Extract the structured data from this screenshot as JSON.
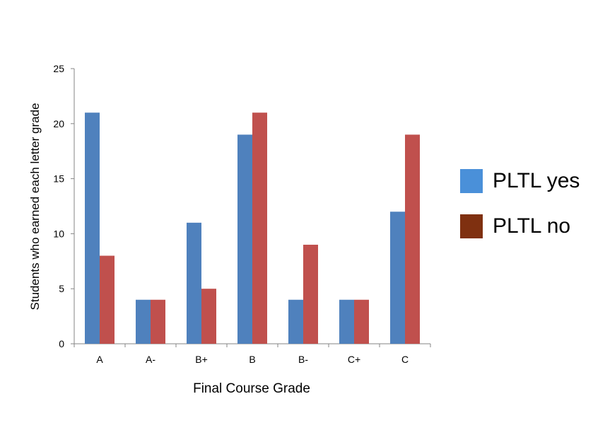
{
  "chart_data": {
    "type": "bar",
    "categories": [
      "A",
      "A-",
      "B+",
      "B",
      "B-",
      "C+",
      "C"
    ],
    "series": [
      {
        "name": "PLTL yes",
        "values": [
          21,
          4,
          11,
          19,
          4,
          4,
          12
        ],
        "color": "#4f81bd"
      },
      {
        "name": "PLTL no",
        "values": [
          8,
          4,
          5,
          21,
          9,
          4,
          19
        ],
        "color": "#c0504d"
      }
    ],
    "xlabel": "Final Course Grade",
    "ylabel": "Students who earned each letter grade",
    "ylim": [
      0,
      25
    ],
    "yticks": [
      0,
      5,
      10,
      15,
      20,
      25
    ],
    "grid": false,
    "legend": {
      "position": "right",
      "items": [
        {
          "label": "PLTL yes",
          "color": "#4a90d9"
        },
        {
          "label": "PLTL no",
          "color": "#7f3010"
        }
      ]
    }
  }
}
